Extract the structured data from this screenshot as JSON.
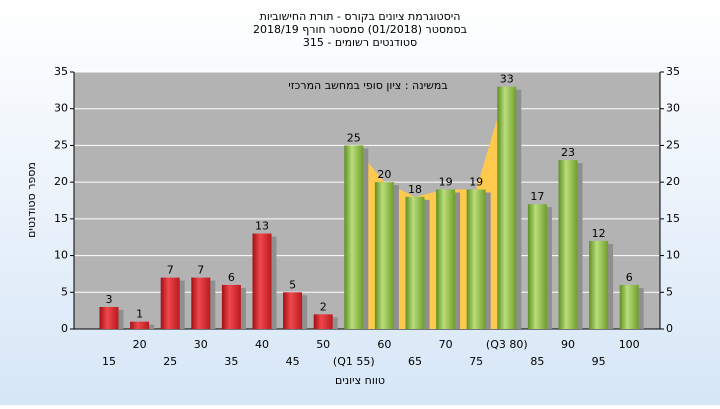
{
  "chart_data": {
    "type": "bar",
    "title": "היסטוגרמת ציונים בקורס - תורת החישוביות",
    "subtitle": "בסמסטר  (01/2018)  סמסטר חורף 2018/19",
    "subtitle2": "סטודנטים רשומים - 315",
    "annotation": "במשינה : ציון סופי במחשב המרכזי",
    "ylabel": "מספר סטודנטים",
    "xlabel": "טווח ציונים",
    "categories": [
      "15",
      "20",
      "25",
      "30",
      "35",
      "40",
      "45",
      "50",
      "(Q1 55)",
      "60",
      "65",
      "70",
      "75",
      "(Q3 80)",
      "85",
      "90",
      "95",
      "100"
    ],
    "values": [
      3,
      1,
      7,
      7,
      6,
      13,
      5,
      2,
      25,
      20,
      18,
      19,
      19,
      33,
      17,
      23,
      12,
      6
    ],
    "colors": [
      "red",
      "red",
      "red",
      "red",
      "red",
      "red",
      "red",
      "red",
      "green",
      "green",
      "green",
      "green",
      "green",
      "green",
      "green",
      "green",
      "green",
      "green"
    ],
    "quartile_range_color": "#ffc94d",
    "ylim": [
      0,
      35
    ],
    "yticks": [
      0,
      5,
      10,
      15,
      20,
      25,
      30,
      35
    ],
    "y2lim": [
      0,
      35
    ],
    "y2ticks": [
      0,
      5,
      10,
      15,
      20,
      25,
      30,
      35
    ],
    "grid": true
  }
}
